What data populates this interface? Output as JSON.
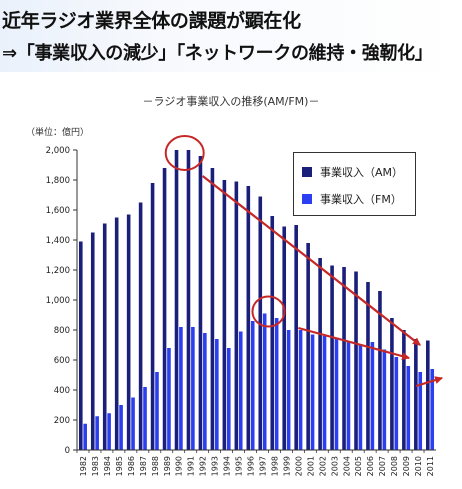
{
  "header": {
    "line1": "近年ラジオ業界全体の課題が顕在化",
    "line2": "⇒「事業収入の減少」「ネットワークの維持・強靭化」"
  },
  "chart_title": "－ラジオ事業収入の推移(AM/FM)－",
  "unit_label": "（単位：億円）",
  "chart_data": {
    "type": "bar",
    "title": "－ラジオ事業収入の推移(AM/FM)－",
    "unit": "（単位：億円）",
    "categories": [
      "1982",
      "1983",
      "1984",
      "1985",
      "1986",
      "1987",
      "1988",
      "1989",
      "1990",
      "1991",
      "1992",
      "1993",
      "1994",
      "1995",
      "1996",
      "1997",
      "1998",
      "1999",
      "2000",
      "2001",
      "2002",
      "2003",
      "2004",
      "2005",
      "2006",
      "2007",
      "2008",
      "2009",
      "2010",
      "2011"
    ],
    "series": [
      {
        "name": "事業収入（AM）",
        "color": "#1a1f7a",
        "values": [
          1390,
          1450,
          1510,
          1550,
          1570,
          1650,
          1780,
          1880,
          2000,
          2000,
          1960,
          1880,
          1800,
          1790,
          1760,
          1690,
          1560,
          1490,
          1500,
          1380,
          1280,
          1230,
          1220,
          1190,
          1120,
          1060,
          880,
          800,
          740,
          730
        ]
      },
      {
        "name": "事業収入（FM）",
        "color": "#2b3ff0",
        "values": [
          175,
          225,
          245,
          300,
          350,
          420,
          520,
          680,
          820,
          820,
          780,
          740,
          680,
          790,
          860,
          910,
          880,
          800,
          800,
          770,
          760,
          750,
          720,
          700,
          720,
          670,
          620,
          560,
          520,
          540
        ]
      }
    ],
    "ylim": [
      0,
      2000
    ],
    "yticks": [
      "0",
      "200",
      "400",
      "600",
      "800",
      "1,000",
      "1,200",
      "1,400",
      "1,600",
      "1,800",
      "2,000"
    ],
    "grid": false,
    "legend": "top-right",
    "annotations": [
      {
        "type": "circle",
        "color": "#c62828",
        "target": "AM 1990-1991 peak"
      },
      {
        "type": "circle",
        "color": "#c62828",
        "target": "FM 1997-1998 peak"
      },
      {
        "type": "arrow",
        "color": "#c62828",
        "target": "AM decline from 1992 to 2010"
      },
      {
        "type": "arrow",
        "color": "#c62828",
        "target": "FM decline from 2000 to 2009"
      },
      {
        "type": "arrow",
        "color": "#c62828",
        "target": "FM 2010-2011"
      }
    ]
  }
}
